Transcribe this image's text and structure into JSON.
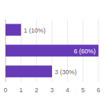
{
  "chart_data": {
    "type": "bar",
    "orientation": "horizontal",
    "categories": [
      null,
      null,
      null
    ],
    "values": [
      1,
      6,
      3
    ],
    "value_labels": [
      "1 (10%)",
      "6 (60%)",
      "3 (30%)"
    ],
    "data_labels": true,
    "color": "#673ab7",
    "xlim": [
      0,
      6
    ],
    "xticks": [
      0,
      1,
      2,
      3,
      4,
      5,
      6
    ],
    "grid": true,
    "tick_labels": "x"
  }
}
